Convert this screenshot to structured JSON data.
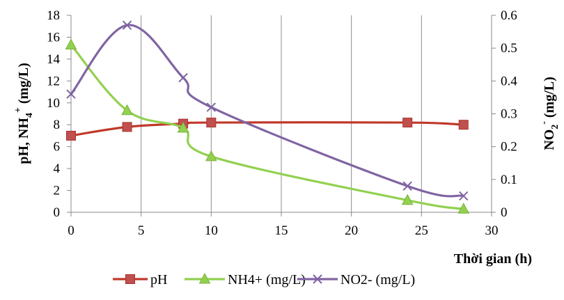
{
  "chart_data": {
    "type": "line",
    "xlabel": "Thời gian (h)",
    "ylabel_left": {
      "main": "pH, NH",
      "sub": "4",
      "sup": "+",
      "unit": " (mg/L)"
    },
    "ylabel_right": {
      "main": "NO",
      "sub": "2",
      "sup": "-",
      "unit": " (mg/L)"
    },
    "xlim": [
      0,
      30
    ],
    "xticks": [
      0,
      5,
      10,
      15,
      20,
      25,
      30
    ],
    "ylim_left": [
      0,
      18
    ],
    "yticks_left": [
      0,
      2,
      4,
      6,
      8,
      10,
      12,
      14,
      16,
      18
    ],
    "ylim_right": [
      0,
      0.6
    ],
    "yticks_right": [
      "0",
      "0.1",
      "0.2",
      "0.3",
      "0.4",
      "0.5",
      "0.6"
    ],
    "grid": {
      "vertical": true,
      "horizontal": false
    },
    "legend_position": "bottom",
    "series": [
      {
        "name": "pH",
        "axis": "left",
        "color": "#c0392b",
        "marker": "square",
        "x": [
          0,
          4,
          8,
          10,
          24,
          28
        ],
        "y": [
          7.0,
          7.8,
          8.1,
          8.2,
          8.2,
          8.0
        ]
      },
      {
        "name": "NH4+ (mg/L)",
        "axis": "left",
        "color": "#92d050",
        "marker": "triangle",
        "x": [
          0,
          4,
          8,
          10,
          24,
          28
        ],
        "y": [
          15.3,
          9.3,
          7.7,
          5.1,
          1.1,
          0.3
        ]
      },
      {
        "name": "NO2- (mg/L)",
        "axis": "right",
        "color": "#8064a2",
        "marker": "x",
        "x": [
          0,
          4,
          8,
          10,
          24,
          28
        ],
        "y": [
          0.36,
          0.57,
          0.41,
          0.32,
          0.08,
          0.05
        ]
      }
    ]
  }
}
